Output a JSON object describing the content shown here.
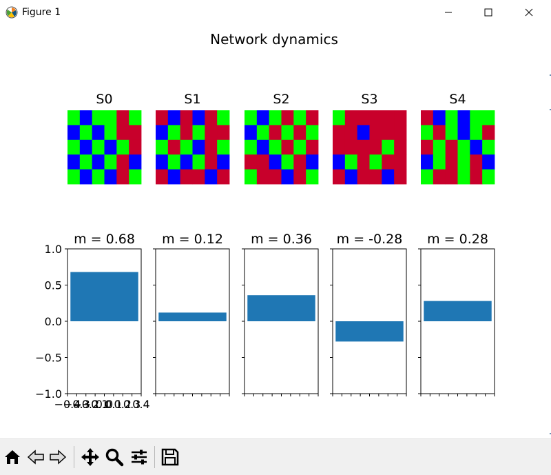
{
  "window": {
    "title": "Figure 1",
    "app_icon": "matplotlib-logo-icon",
    "controls": [
      "minimize-icon",
      "maximize-icon",
      "close-icon"
    ]
  },
  "figure": {
    "suptitle": "Network dynamics"
  },
  "colors": {
    "state_colors": {
      "B": "#0000ff",
      "G": "#00ff00",
      "R": "#c8002b"
    },
    "bar": "#1f77b4"
  },
  "chart_data": [
    {
      "type": "heatmap",
      "title": "S0",
      "rows": [
        "GBGGRG",
        "BGBGRR",
        "GBGBGR",
        "BGBGRB",
        "GBGBRG"
      ]
    },
    {
      "type": "heatmap",
      "title": "S1",
      "rows": [
        "RBRBRG",
        "BGRGRR",
        "GRGBRG",
        "BGBGRB",
        "RBRRBR"
      ]
    },
    {
      "type": "heatmap",
      "title": "S2",
      "rows": [
        "GBGRGR",
        "BGRGRG",
        "GBGRGR",
        "RRBGRB",
        "GRRBRG"
      ]
    },
    {
      "type": "heatmap",
      "title": "S3",
      "rows": [
        "GRRRRR",
        "RRBRRR",
        "RRRRGR",
        "BGRGRR",
        "RBRRBR"
      ]
    },
    {
      "type": "heatmap",
      "title": "S4",
      "rows": [
        "RBGBGG",
        "GRGBGR",
        "RGRGBG",
        "BGRGRB",
        "GRRGRG"
      ]
    },
    {
      "type": "bar",
      "title": "m = 0.68",
      "values": [
        0.68
      ],
      "ylim": [
        -1.0,
        1.0
      ],
      "yticks": [
        "1.0",
        "0.5",
        "0.0",
        "−0.5",
        "−1.0"
      ],
      "xlim": [
        -0.4,
        0.4
      ],
      "xticks": [
        "−0.4",
        "−0.3",
        "−0.2",
        "−0.1",
        "0.0",
        "0.1",
        "0.2",
        "0.3",
        "0.4"
      ]
    },
    {
      "type": "bar",
      "title": "m = 0.12",
      "values": [
        0.12
      ],
      "ylim": [
        -1.0,
        1.0
      ],
      "xlim": [
        -0.4,
        0.4
      ]
    },
    {
      "type": "bar",
      "title": "m = 0.36",
      "values": [
        0.36
      ],
      "ylim": [
        -1.0,
        1.0
      ],
      "xlim": [
        -0.4,
        0.4
      ]
    },
    {
      "type": "bar",
      "title": "m = -0.28",
      "values": [
        -0.28
      ],
      "ylim": [
        -1.0,
        1.0
      ],
      "xlim": [
        -0.4,
        0.4
      ]
    },
    {
      "type": "bar",
      "title": "m = 0.28",
      "values": [
        0.28
      ],
      "ylim": [
        -1.0,
        1.0
      ],
      "xlim": [
        -0.4,
        0.4
      ]
    }
  ],
  "toolbar": {
    "buttons": [
      "home-icon",
      "back-icon",
      "forward-icon",
      "pan-icon",
      "zoom-icon",
      "configure-subplots-icon",
      "save-icon"
    ]
  }
}
